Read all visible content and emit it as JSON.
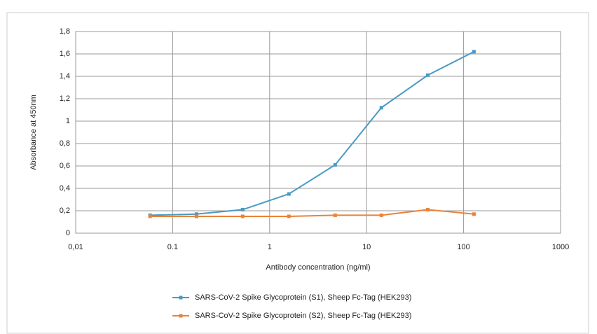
{
  "chart_data": {
    "type": "line",
    "x_label": "Antibody concentration (ng/ml)",
    "y_label": "Absorbance at 450nm",
    "x_log": true,
    "grid": true,
    "x": [
      0.0585,
      0.176,
      0.527,
      1.58,
      4.74,
      14.2,
      42.7,
      128
    ],
    "series": [
      {
        "name": "SARS-CoV-2 Spike Glycoprotein (S1), Sheep Fc-Tag (HEK293)",
        "color": "#4a9ac4",
        "values": [
          0.16,
          0.17,
          0.21,
          0.35,
          0.61,
          1.12,
          1.41,
          1.62
        ]
      },
      {
        "name": "SARS-CoV-2 Spike Glycoprotein (S2), Sheep Fc-Tag (HEK293)",
        "color": "#e8833a",
        "values": [
          0.15,
          0.15,
          0.15,
          0.15,
          0.16,
          0.16,
          0.21,
          0.17
        ]
      }
    ],
    "xlim": [
      0.01,
      1000
    ],
    "xticks": [
      {
        "value": 0.01,
        "label": "0,01"
      },
      0.1,
      1,
      10,
      100,
      1000
    ],
    "ylim": [
      0,
      1.8
    ],
    "yticks": [
      0,
      {
        "value": 0.2,
        "label": "0,2"
      },
      {
        "value": 0.4,
        "label": "0,4"
      },
      {
        "value": 0.6,
        "label": "0,6"
      },
      {
        "value": 0.8,
        "label": "0,8"
      },
      1,
      {
        "value": 1.2,
        "label": "1,2"
      },
      {
        "value": 1.4,
        "label": "1,4"
      },
      {
        "value": 1.6,
        "label": "1,6"
      },
      {
        "value": 1.8,
        "label": "1,8"
      }
    ]
  }
}
